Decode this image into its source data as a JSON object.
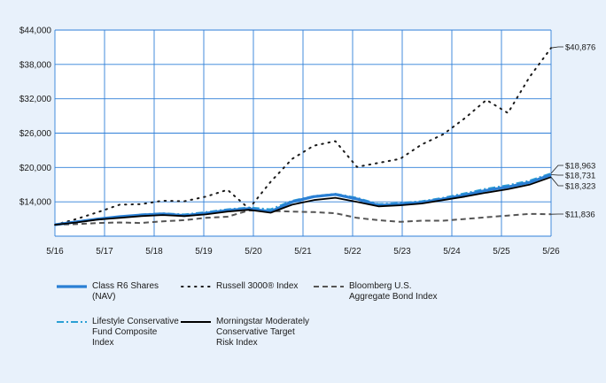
{
  "chart_data": {
    "type": "line",
    "x_ticks": [
      "5/16",
      "5/17",
      "5/18",
      "5/19",
      "5/20",
      "5/21",
      "5/22",
      "5/23",
      "5/24",
      "5/25",
      "5/26"
    ],
    "y_ticks": [
      "$14,000",
      "$20,000",
      "$26,000",
      "$32,000",
      "$38,000",
      "$44,000"
    ],
    "ylim": [
      8000,
      44000
    ],
    "grid": true,
    "legend_position": "bottom",
    "series": [
      {
        "name": "Class R6 Shares (NAV)",
        "end_label": "$18,731",
        "color": "#2a7fd4",
        "style": "solid-thick",
        "values": [
          10000,
          10500,
          11000,
          11400,
          11700,
          11900,
          11600,
          12000,
          12500,
          12800,
          12300,
          14000,
          14900,
          15300,
          14500,
          13400,
          13600,
          13900,
          14500,
          15200,
          16000,
          16600,
          17400,
          18731
        ]
      },
      {
        "name": "Russell 3000® Index",
        "end_label": "$40,876",
        "color": "#1a1a1a",
        "style": "dotted",
        "values": [
          10000,
          11000,
          12200,
          13500,
          13600,
          14200,
          14100,
          14900,
          16100,
          12800,
          17500,
          21500,
          23800,
          24600,
          20100,
          20800,
          21500,
          24000,
          25800,
          28600,
          31800,
          29500,
          35800,
          40876
        ]
      },
      {
        "name": "Bloomberg U.S. Aggregate Bond Index",
        "end_label": "$11,836",
        "color": "#555555",
        "style": "dashed",
        "values": [
          10000,
          10100,
          10300,
          10400,
          10300,
          10600,
          10800,
          11200,
          11400,
          12500,
          12400,
          12300,
          12200,
          12000,
          11200,
          10800,
          10500,
          10700,
          10700,
          11000,
          11300,
          11600,
          11900,
          11836
        ]
      },
      {
        "name": "Lifestyle Conservative Fund Composite Index",
        "end_label": "$18,963",
        "color": "#2a9fd4",
        "style": "dashdot",
        "values": [
          10000,
          10500,
          11000,
          11400,
          11800,
          12000,
          11800,
          12200,
          12700,
          13000,
          12700,
          14200,
          15000,
          15400,
          14700,
          13600,
          13800,
          14100,
          14700,
          15500,
          16300,
          16900,
          17700,
          18963
        ]
      },
      {
        "name": "Morningstar Moderately Conservative Target Risk Index",
        "end_label": "$18,323",
        "color": "#000000",
        "style": "solid",
        "values": [
          10000,
          10400,
          10900,
          11200,
          11500,
          11700,
          11500,
          11800,
          12300,
          12600,
          12100,
          13500,
          14300,
          14700,
          14000,
          13200,
          13400,
          13700,
          14300,
          14900,
          15600,
          16200,
          17000,
          18323
        ]
      }
    ]
  }
}
